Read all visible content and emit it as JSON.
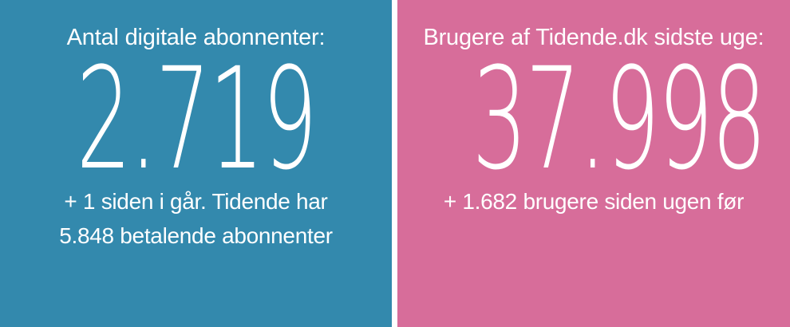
{
  "colors": {
    "left_panel_bg": "#3389ad",
    "right_panel_bg": "#d76d9a",
    "divider": "#ffffff",
    "text": "#ffffff"
  },
  "left_panel": {
    "title": "Antal digitale abonnenter:",
    "value": "2.719",
    "subtitle_lines": [
      "+ 1 siden i går. Tidende har",
      "5.848 betalende abonnenter"
    ]
  },
  "right_panel": {
    "title": "Brugere af Tidende.dk sidste uge:",
    "value": "37.998",
    "subtitle_lines": [
      "+ 1.682 brugere siden ugen før"
    ]
  }
}
